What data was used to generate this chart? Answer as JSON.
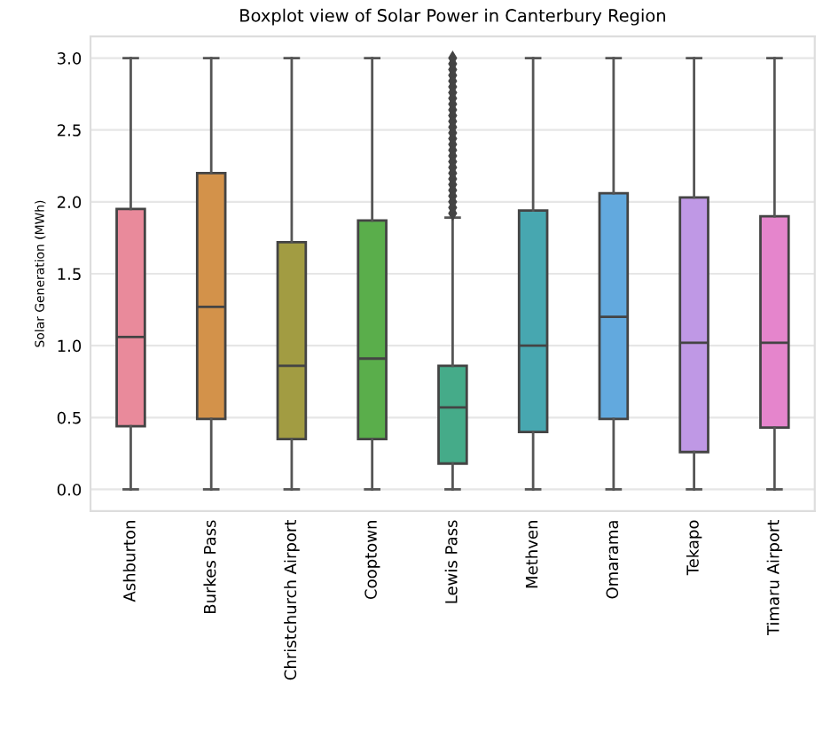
{
  "chart_data": {
    "type": "box",
    "title": "Boxplot view of Solar Power in Canterbury Region",
    "ylabel": "Solar Generation (MWh)",
    "categories": [
      "Ashburton",
      "Burkes Pass",
      "Christchurch Airport",
      "Cooptown",
      "Lewis Pass",
      "Methven",
      "Omarama",
      "Tekapo",
      "Timaru Airport"
    ],
    "colors": [
      "#e98a9b",
      "#d3924a",
      "#a29c42",
      "#5aae4b",
      "#45ab89",
      "#47a7b0",
      "#62a9de",
      "#bf98e5",
      "#e585cc"
    ],
    "boxes": [
      {
        "low": 0.0,
        "q1": 0.44,
        "median": 1.06,
        "q3": 1.95,
        "high": 3.0
      },
      {
        "low": 0.0,
        "q1": 0.49,
        "median": 1.27,
        "q3": 2.2,
        "high": 3.0
      },
      {
        "low": 0.0,
        "q1": 0.35,
        "median": 0.86,
        "q3": 1.72,
        "high": 3.0
      },
      {
        "low": 0.0,
        "q1": 0.35,
        "median": 0.91,
        "q3": 1.87,
        "high": 3.0
      },
      {
        "low": 0.0,
        "q1": 0.18,
        "median": 0.57,
        "q3": 0.86,
        "high": 1.89,
        "outliers": [
          1.92,
          1.96,
          2.0,
          2.04,
          2.08,
          2.12,
          2.16,
          2.2,
          2.24,
          2.28,
          2.32,
          2.36,
          2.4,
          2.44,
          2.48,
          2.52,
          2.56,
          2.6,
          2.64,
          2.68,
          2.72,
          2.76,
          2.8,
          2.84,
          2.88,
          2.92,
          2.96,
          3.0
        ]
      },
      {
        "low": 0.0,
        "q1": 0.4,
        "median": 1.0,
        "q3": 1.94,
        "high": 3.0
      },
      {
        "low": 0.0,
        "q1": 0.49,
        "median": 1.2,
        "q3": 2.06,
        "high": 3.0
      },
      {
        "low": 0.0,
        "q1": 0.26,
        "median": 1.02,
        "q3": 2.03,
        "high": 3.0
      },
      {
        "low": 0.0,
        "q1": 0.43,
        "median": 1.02,
        "q3": 1.9,
        "high": 3.0
      }
    ],
    "ylim": [
      -0.15,
      3.15
    ],
    "yticks": [
      {
        "value": 0,
        "label": "0.0"
      },
      0.5,
      {
        "value": 1,
        "label": "1.0"
      },
      1.5,
      {
        "value": 2,
        "label": "2.0"
      },
      2.5,
      {
        "value": 3,
        "label": "3.0"
      }
    ],
    "grid": "y",
    "legend": false
  }
}
